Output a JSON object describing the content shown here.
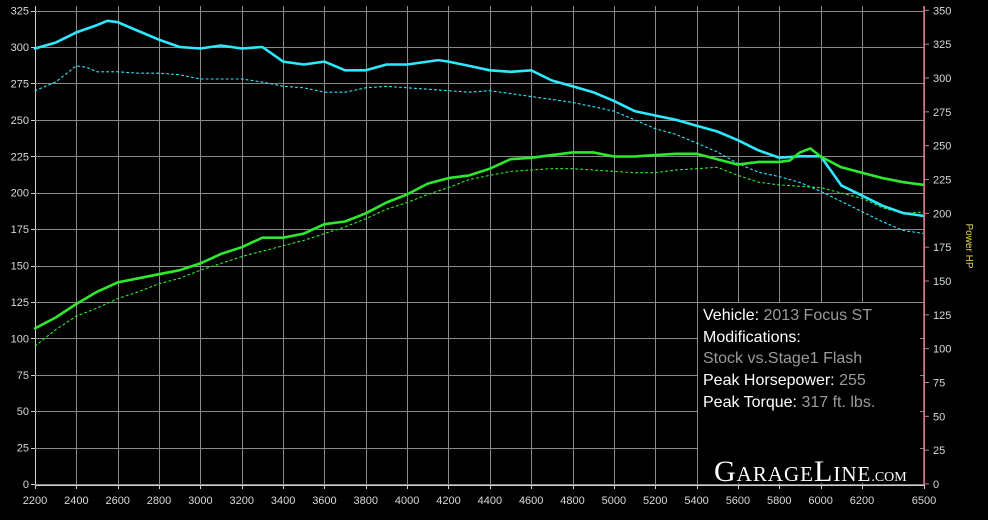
{
  "chart_data": {
    "type": "line",
    "title": "",
    "xlabel": "",
    "ylabel_left": "",
    "ylabel_right": "Power HP",
    "xlim": [
      2200,
      6500
    ],
    "ylim_left": [
      0,
      340
    ],
    "ylim_right": [
      0,
      350
    ],
    "x_ticks": [
      2200,
      2400,
      2600,
      2800,
      3000,
      3200,
      3400,
      3600,
      3800,
      4000,
      4200,
      4400,
      4600,
      4800,
      5000,
      5200,
      5400,
      5600,
      5800,
      6000,
      6200,
      6500
    ],
    "y_ticks_left": [
      0,
      25,
      50,
      75,
      100,
      125,
      150,
      175,
      200,
      225,
      250,
      275,
      300,
      325
    ],
    "y_ticks_right": [
      0,
      25,
      50,
      75,
      100,
      125,
      150,
      175,
      200,
      225,
      250,
      275,
      300,
      325,
      350
    ],
    "grid": true,
    "series": [
      {
        "axis": "left",
        "color": "#2ee8ff",
        "style": "solid",
        "width": 2.6,
        "x": [
          2200,
          2300,
          2400,
          2500,
          2550,
          2600,
          2700,
          2800,
          2900,
          3000,
          3050,
          3100,
          3200,
          3300,
          3400,
          3500,
          3600,
          3700,
          3800,
          3900,
          4000,
          4100,
          4150,
          4200,
          4300,
          4400,
          4500,
          4600,
          4700,
          4800,
          4900,
          5000,
          5100,
          5200,
          5300,
          5400,
          5500,
          5600,
          5700,
          5800,
          5900,
          6000,
          6050,
          6100,
          6200,
          6300,
          6400,
          6450,
          6500
        ],
        "y": [
          299,
          303,
          310,
          315,
          318,
          317,
          311,
          305,
          300,
          299,
          300,
          301,
          299,
          300,
          290,
          288,
          290,
          284,
          284,
          288,
          288,
          290,
          291,
          290,
          287,
          284,
          283,
          284,
          277,
          273,
          269,
          263,
          256,
          253,
          250,
          246,
          242,
          236,
          229,
          224,
          225,
          225,
          215,
          205,
          198,
          191,
          186,
          185,
          184
        ]
      },
      {
        "axis": "left",
        "color": "#2ee8ff",
        "style": "dotted",
        "width": 1.1,
        "x": [
          2200,
          2300,
          2400,
          2450,
          2500,
          2600,
          2700,
          2800,
          2900,
          3000,
          3100,
          3200,
          3300,
          3400,
          3500,
          3600,
          3700,
          3800,
          3900,
          4000,
          4100,
          4200,
          4300,
          4400,
          4500,
          4600,
          4700,
          4800,
          4900,
          5000,
          5100,
          5200,
          5300,
          5400,
          5500,
          5600,
          5700,
          5800,
          5900,
          6000,
          6100,
          6200,
          6300,
          6400,
          6500
        ],
        "y": [
          270,
          276,
          287,
          286,
          283,
          283,
          282,
          282,
          281,
          278,
          278,
          278,
          276,
          273,
          272,
          269,
          269,
          272,
          273,
          272,
          271,
          270,
          269,
          270,
          268,
          266,
          264,
          262,
          259,
          256,
          250,
          244,
          240,
          234,
          228,
          220,
          214,
          211,
          207,
          201,
          194,
          187,
          180,
          174,
          172
        ]
      },
      {
        "axis": "right",
        "color": "#2ee82e",
        "style": "solid",
        "width": 2.6,
        "x": [
          2200,
          2300,
          2400,
          2500,
          2600,
          2700,
          2800,
          2900,
          3000,
          3100,
          3200,
          3300,
          3400,
          3500,
          3600,
          3700,
          3800,
          3900,
          4000,
          4100,
          4200,
          4300,
          4400,
          4500,
          4600,
          4700,
          4800,
          4900,
          5000,
          5100,
          5200,
          5300,
          5400,
          5500,
          5600,
          5700,
          5800,
          5850,
          5900,
          5950,
          6000,
          6100,
          6200,
          6300,
          6400,
          6500
        ],
        "y": [
          115,
          123,
          133,
          142,
          149,
          152,
          155,
          158,
          163,
          170,
          175,
          182,
          182,
          185,
          192,
          194,
          200,
          208,
          214,
          222,
          226,
          228,
          233,
          240,
          241,
          243,
          245,
          245,
          242,
          242,
          243,
          244,
          244,
          240,
          236,
          238,
          238,
          239,
          245,
          248,
          242,
          234,
          230,
          226,
          223,
          221
        ]
      },
      {
        "axis": "right",
        "color": "#2ee82e",
        "style": "dotted",
        "width": 1.1,
        "x": [
          2200,
          2300,
          2400,
          2500,
          2600,
          2700,
          2800,
          2900,
          3000,
          3100,
          3200,
          3300,
          3400,
          3500,
          3600,
          3700,
          3800,
          3900,
          4000,
          4100,
          4200,
          4300,
          4400,
          4500,
          4600,
          4700,
          4800,
          4900,
          5000,
          5100,
          5200,
          5300,
          5400,
          5500,
          5600,
          5700,
          5800,
          5900,
          6000,
          6100,
          6200,
          6300,
          6400,
          6500
        ],
        "y": [
          102,
          114,
          124,
          130,
          137,
          142,
          148,
          152,
          158,
          163,
          168,
          172,
          176,
          180,
          185,
          190,
          196,
          203,
          208,
          214,
          219,
          225,
          228,
          231,
          232,
          233,
          233,
          232,
          231,
          230,
          230,
          232,
          233,
          234,
          228,
          223,
          221,
          220,
          219,
          215,
          211,
          204,
          200,
          201
        ]
      }
    ]
  },
  "info": {
    "vehicle_label": "Vehicle:",
    "vehicle_value": "2013 Focus ST",
    "mods_label": "Modifications:",
    "mods_value": "Stock vs.Stage1 Flash",
    "hp_label": "Peak Horsepower:",
    "hp_value": "255",
    "tq_label": "Peak Torque:",
    "tq_value": "317 ft. lbs."
  },
  "brand": {
    "g": "G",
    "arage": "ARAGE",
    "l": "L",
    "ine": "INE",
    "dom": ".COM"
  }
}
